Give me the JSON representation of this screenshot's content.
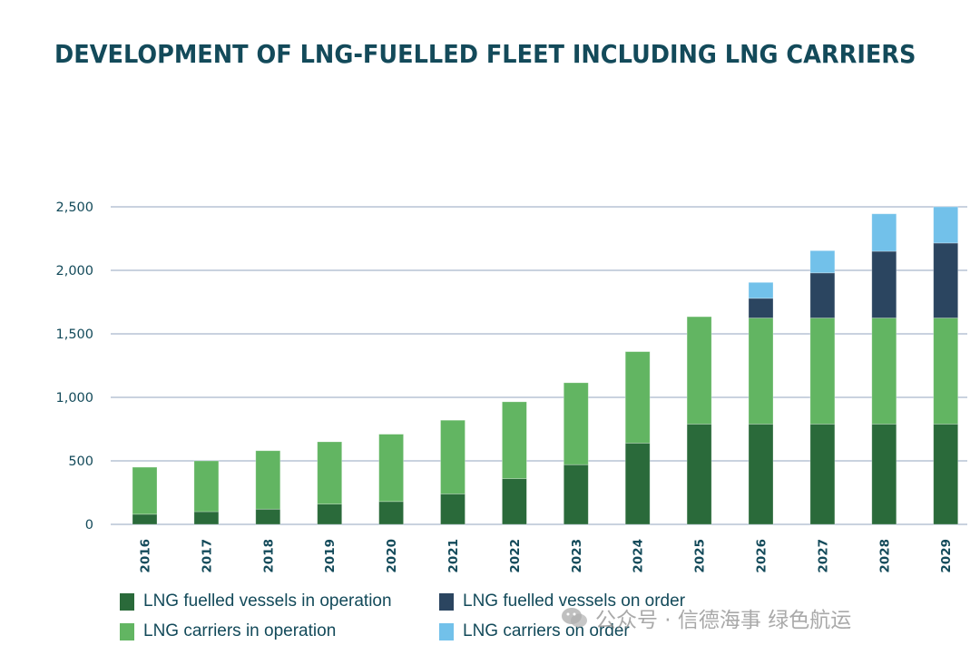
{
  "chart_data": {
    "type": "bar",
    "stacked": true,
    "title": "DEVELOPMENT OF LNG-FUELLED FLEET INCLUDING LNG CARRIERS",
    "xlabel": "",
    "ylabel": "",
    "ylim": [
      0,
      2500
    ],
    "yticks": [
      0,
      500,
      1000,
      1500,
      2000,
      2500
    ],
    "ytick_labels": [
      "0",
      "500",
      "1,000",
      "1,500",
      "2,000",
      "2,500"
    ],
    "grid": true,
    "legend_position": "bottom",
    "categories": [
      "2016",
      "2017",
      "2018",
      "2019",
      "2020",
      "2021",
      "2022",
      "2023",
      "2024",
      "2025",
      "2026",
      "2027",
      "2028",
      "2029"
    ],
    "series": [
      {
        "name": "LNG fuelled vessels in operation",
        "color": "#2a6a3a",
        "values": [
          80,
          100,
          120,
          160,
          180,
          240,
          360,
          470,
          640,
          790,
          790,
          790,
          790,
          790
        ]
      },
      {
        "name": "LNG carriers in operation",
        "color": "#62b562",
        "values": [
          370,
          400,
          460,
          490,
          530,
          580,
          605,
          645,
          720,
          845,
          835,
          835,
          835,
          835
        ]
      },
      {
        "name": "LNG fuelled vessels on order",
        "color": "#2b4560",
        "values": [
          0,
          0,
          0,
          0,
          0,
          0,
          0,
          0,
          0,
          0,
          155,
          355,
          525,
          590
        ]
      },
      {
        "name": "LNG carriers on order",
        "color": "#72c1ea",
        "values": [
          0,
          0,
          0,
          0,
          0,
          0,
          0,
          0,
          0,
          0,
          125,
          175,
          295,
          285
        ]
      }
    ]
  },
  "legend": {
    "items": [
      {
        "label": "LNG fuelled vessels in operation",
        "color": "#2a6a3a"
      },
      {
        "label": "LNG fuelled vessels on order",
        "color": "#2b4560"
      },
      {
        "label": "LNG carriers in operation",
        "color": "#62b562"
      },
      {
        "label": "LNG carriers on order",
        "color": "#72c1ea"
      }
    ]
  },
  "watermark": {
    "icon": "wechat-icon",
    "text": "公众号 · 信德海事 绿色航运"
  },
  "colors": {
    "title": "#134a5a",
    "gridline": "#a9b7cc",
    "axis_text": "#134a5a"
  }
}
